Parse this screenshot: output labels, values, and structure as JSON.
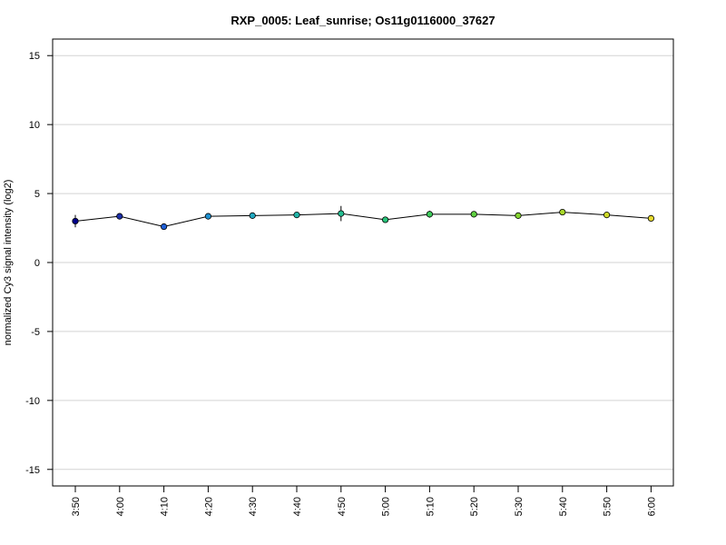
{
  "chart_data": {
    "type": "line",
    "title": "RXP_0005: Leaf_sunrise; Os11g0116000_37627",
    "xlabel": "",
    "ylabel": "normalized Cy3 signal intensity (log2)",
    "categories": [
      "3:50",
      "4:00",
      "4:10",
      "4:20",
      "4:30",
      "4:40",
      "4:50",
      "5:00",
      "5:10",
      "5:20",
      "5:30",
      "5:40",
      "5:50",
      "6:00"
    ],
    "series": [
      {
        "values": [
          3.0,
          3.35,
          2.6,
          3.35,
          3.4,
          3.45,
          3.55,
          3.1,
          3.5,
          3.5,
          3.4,
          3.65,
          3.45,
          3.2
        ],
        "errors": [
          0.45,
          0.12,
          0.1,
          0.12,
          0.15,
          0.12,
          0.55,
          0.12,
          0.25,
          0.15,
          0.1,
          0.12,
          0.22,
          0.1
        ],
        "colors": [
          "#00008b",
          "#1c2fa8",
          "#1f5fd6",
          "#1e90d0",
          "#20a8c0",
          "#22b5a8",
          "#24bf92",
          "#28c47a",
          "#3ecb5c",
          "#5fd040",
          "#84d430",
          "#a9d82a",
          "#cdd92a",
          "#e6d92e"
        ]
      }
    ],
    "yticks": [
      -15,
      -10,
      -5,
      0,
      5,
      10,
      15
    ],
    "ylim": [
      -16.2,
      16.2
    ],
    "grid": true,
    "legend": "none"
  }
}
